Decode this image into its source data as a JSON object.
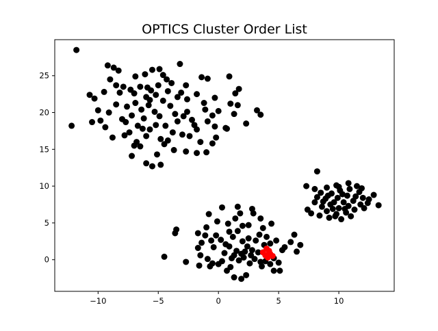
{
  "chart_data": {
    "type": "scatter",
    "title": "OPTICS Cluster Order List",
    "xlabel": "",
    "ylabel": "",
    "xlim": [
      -13.6,
      14.6
    ],
    "ylim": [
      -4.3,
      29.9
    ],
    "grid": false,
    "xticks": [
      -10,
      -5,
      0,
      5,
      10
    ],
    "yticks": [
      0,
      5,
      10,
      15,
      20,
      25
    ],
    "colors": {
      "points": "#000000",
      "highlight": "#ff0000"
    },
    "series": [
      {
        "color": "#000000",
        "points": [
          [
            -11.8,
            28.5
          ],
          [
            -12.2,
            18.2
          ],
          [
            -9.2,
            26.4
          ],
          [
            -10.7,
            22.4
          ],
          [
            -10.3,
            21.9
          ],
          [
            -9.5,
            22.8
          ],
          [
            -8.7,
            26.1
          ],
          [
            -8.3,
            25.7
          ],
          [
            -9.0,
            24.5
          ],
          [
            -8.5,
            23.7
          ],
          [
            -7.9,
            23.5
          ],
          [
            -7.3,
            23.1
          ],
          [
            -6.9,
            24.9
          ],
          [
            -6.1,
            25.2
          ],
          [
            -5.5,
            25.8
          ],
          [
            -4.9,
            25.9
          ],
          [
            -4.6,
            25.1
          ],
          [
            -3.2,
            26.6
          ],
          [
            -4.3,
            24.5
          ],
          [
            -2.7,
            23.7
          ],
          [
            -1.4,
            24.8
          ],
          [
            -0.9,
            24.6
          ],
          [
            0.9,
            24.9
          ],
          [
            1.4,
            22.6
          ],
          [
            1.7,
            23.2
          ],
          [
            1.0,
            21.2
          ],
          [
            1.6,
            21.0
          ],
          [
            1.3,
            19.8
          ],
          [
            3.2,
            20.3
          ],
          [
            3.5,
            19.7
          ],
          [
            2.3,
            18.5
          ],
          [
            0.7,
            17.8
          ],
          [
            -0.3,
            22.0
          ],
          [
            -1.2,
            21.3
          ],
          [
            -1.8,
            22.5
          ],
          [
            -2.6,
            21.8
          ],
          [
            -3.4,
            22.1
          ],
          [
            -4.0,
            20.9
          ],
          [
            -4.6,
            21.6
          ],
          [
            -5.2,
            22.4
          ],
          [
            -5.6,
            23.0
          ],
          [
            -6.0,
            22.1
          ],
          [
            -5.8,
            21.0
          ],
          [
            -6.4,
            20.4
          ],
          [
            -6.9,
            21.3
          ],
          [
            -7.2,
            19.6
          ],
          [
            -7.6,
            20.8
          ],
          [
            -8.0,
            19.1
          ],
          [
            -8.5,
            21.1
          ],
          [
            -9.1,
            20.0
          ],
          [
            -9.8,
            18.9
          ],
          [
            -10.0,
            20.3
          ],
          [
            -10.5,
            18.7
          ],
          [
            -9.4,
            18.0
          ],
          [
            -8.8,
            16.6
          ],
          [
            -7.8,
            16.9
          ],
          [
            -7.4,
            17.3
          ],
          [
            -6.8,
            16.0
          ],
          [
            -6.5,
            15.4
          ],
          [
            -6.0,
            16.8
          ],
          [
            -5.7,
            17.7
          ],
          [
            -5.2,
            18.3
          ],
          [
            -4.8,
            16.4
          ],
          [
            -4.5,
            15.7
          ],
          [
            -4.2,
            16.2
          ],
          [
            -3.8,
            17.3
          ],
          [
            -3.4,
            18.8
          ],
          [
            -2.9,
            19.5
          ],
          [
            -2.6,
            20.1
          ],
          [
            -2.2,
            19.0
          ],
          [
            -1.8,
            17.7
          ],
          [
            -1.5,
            16.0
          ],
          [
            -0.9,
            18.8
          ],
          [
            -0.5,
            19.6
          ],
          [
            0.0,
            20.2
          ],
          [
            -0.2,
            16.6
          ],
          [
            -0.5,
            15.8
          ],
          [
            -1.0,
            14.6
          ],
          [
            -1.8,
            14.5
          ],
          [
            -2.7,
            14.7
          ],
          [
            -3.7,
            14.9
          ],
          [
            -5.1,
            14.3
          ],
          [
            -6.0,
            13.1
          ],
          [
            -5.5,
            12.7
          ],
          [
            -4.8,
            12.9
          ],
          [
            -7.2,
            14.1
          ],
          [
            -7.7,
            18.7
          ],
          [
            -8.2,
            22.7
          ],
          [
            -7.0,
            22.6
          ],
          [
            -6.5,
            23.5
          ],
          [
            -5.9,
            23.4
          ],
          [
            -4.2,
            22.9
          ],
          [
            -3.6,
            19.8
          ],
          [
            -4.9,
            19.5
          ],
          [
            -5.3,
            20.1
          ],
          [
            -6.2,
            19.2
          ],
          [
            -6.7,
            18.2
          ],
          [
            -2.0,
            18.3
          ],
          [
            -1.1,
            20.4
          ],
          [
            -0.3,
            18.1
          ],
          [
            0.6,
            17.9
          ],
          [
            -3.1,
            22.7
          ],
          [
            -5.7,
            21.7
          ],
          [
            -4.4,
            18.2
          ],
          [
            -3.0,
            17.0
          ],
          [
            -2.4,
            16.8
          ],
          [
            -6.3,
            17.8
          ],
          [
            -7.0,
            15.5
          ],
          [
            -5.0,
            23.7
          ],
          [
            -3.9,
            24.0
          ],
          [
            -4.5,
            0.4
          ],
          [
            -2.7,
            -0.3
          ],
          [
            -3.6,
            3.6
          ],
          [
            -3.5,
            4.1
          ],
          [
            -1.7,
            3.6
          ],
          [
            -1.0,
            4.4
          ],
          [
            -0.8,
            6.2
          ],
          [
            0.3,
            7.1
          ],
          [
            1.6,
            7.2
          ],
          [
            1.8,
            6.3
          ],
          [
            2.8,
            6.9
          ],
          [
            2.9,
            6.3
          ],
          [
            3.5,
            5.6
          ],
          [
            4.4,
            4.9
          ],
          [
            3.7,
            4.3
          ],
          [
            2.5,
            4.7
          ],
          [
            1.4,
            5.6
          ],
          [
            0.8,
            4.9
          ],
          [
            -0.1,
            5.2
          ],
          [
            -1.4,
            2.3
          ],
          [
            -1.7,
            1.6
          ],
          [
            -1.5,
            0.6
          ],
          [
            -1.6,
            -0.8
          ],
          [
            -0.9,
            0.1
          ],
          [
            -0.5,
            -0.5
          ],
          [
            0.0,
            -0.6
          ],
          [
            0.5,
            0.9
          ],
          [
            0.9,
            1.8
          ],
          [
            1.2,
            3.1
          ],
          [
            1.6,
            3.9
          ],
          [
            2.0,
            2.5
          ],
          [
            2.4,
            1.8
          ],
          [
            2.8,
            1.3
          ],
          [
            3.1,
            2.6
          ],
          [
            3.4,
            3.4
          ],
          [
            1.3,
            0.6
          ],
          [
            1.7,
            -0.1
          ],
          [
            2.1,
            0.3
          ],
          [
            2.6,
            -0.5
          ],
          [
            3.0,
            0.1
          ],
          [
            3.5,
            -0.3
          ],
          [
            1.0,
            -1.0
          ],
          [
            0.7,
            -1.5
          ],
          [
            1.3,
            -2.4
          ],
          [
            1.9,
            -2.6
          ],
          [
            2.3,
            -2.1
          ],
          [
            3.9,
            -0.2
          ],
          [
            4.3,
            -0.6
          ],
          [
            4.6,
            -1.5
          ],
          [
            5.1,
            -1.5
          ],
          [
            5.0,
            -0.4
          ],
          [
            5.3,
            1.3
          ],
          [
            4.8,
            2.6
          ],
          [
            5.5,
            1.7
          ],
          [
            6.3,
            3.4
          ],
          [
            6.0,
            2.4
          ],
          [
            6.5,
            1.1
          ],
          [
            6.8,
            2.0
          ],
          [
            4.3,
            2.2
          ],
          [
            4.0,
            3.1
          ],
          [
            0.2,
            2.7
          ],
          [
            -0.4,
            1.7
          ],
          [
            -0.2,
            3.3
          ],
          [
            0.6,
            2.1
          ],
          [
            1.5,
            1.2
          ],
          [
            2.2,
            1.1
          ],
          [
            2.5,
            2.9
          ],
          [
            3.3,
            1.0
          ],
          [
            -1.1,
            3.3
          ],
          [
            -0.7,
            -0.9
          ],
          [
            0.3,
            -0.2
          ],
          [
            1.9,
            0.8
          ],
          [
            2.7,
            0.6
          ],
          [
            3.8,
            2.0
          ],
          [
            2.0,
            4.6
          ],
          [
            0.9,
            3.8
          ],
          [
            -0.6,
            2.6
          ],
          [
            1.1,
            0.2
          ],
          [
            4.6,
            0.2
          ],
          [
            3.6,
            -0.9
          ],
          [
            8.2,
            12.0
          ],
          [
            7.3,
            10.0
          ],
          [
            8.0,
            9.6
          ],
          [
            7.4,
            6.8
          ],
          [
            7.7,
            6.3
          ],
          [
            8.4,
            6.0
          ],
          [
            9.2,
            5.7
          ],
          [
            10.2,
            5.5
          ],
          [
            11.0,
            5.9
          ],
          [
            12.1,
            7.0
          ],
          [
            12.4,
            7.7
          ],
          [
            13.3,
            7.4
          ],
          [
            12.9,
            8.8
          ],
          [
            11.5,
            10.0
          ],
          [
            10.8,
            10.4
          ],
          [
            9.8,
            10.1
          ],
          [
            9.0,
            9.8
          ],
          [
            8.5,
            9.1
          ],
          [
            8.2,
            8.5
          ],
          [
            8.0,
            7.8
          ],
          [
            8.6,
            7.2
          ],
          [
            9.0,
            6.6
          ],
          [
            9.8,
            6.2
          ],
          [
            10.6,
            6.4
          ],
          [
            11.3,
            6.8
          ],
          [
            11.8,
            7.5
          ],
          [
            12.0,
            8.4
          ],
          [
            11.7,
            9.2
          ],
          [
            10.9,
            9.6
          ],
          [
            10.1,
            9.4
          ],
          [
            9.4,
            9.0
          ],
          [
            8.9,
            8.3
          ],
          [
            9.3,
            7.5
          ],
          [
            10.0,
            7.0
          ],
          [
            10.8,
            7.3
          ],
          [
            11.2,
            8.0
          ],
          [
            10.7,
            8.7
          ],
          [
            9.9,
            8.4
          ],
          [
            9.6,
            7.8
          ],
          [
            10.4,
            7.8
          ],
          [
            10.3,
            8.9
          ],
          [
            9.1,
            8.7
          ],
          [
            11.4,
            8.6
          ],
          [
            10.5,
            6.9
          ],
          [
            9.5,
            6.9
          ],
          [
            8.7,
            7.9
          ],
          [
            11.9,
            9.7
          ],
          [
            12.5,
            8.2
          ],
          [
            10.0,
            9.9
          ],
          [
            9.7,
            5.9
          ]
        ]
      },
      {
        "color": "#ff0000",
        "points": [
          [
            3.7,
            1.0
          ],
          [
            4.0,
            1.5
          ],
          [
            4.3,
            0.8
          ],
          [
            4.1,
            0.3
          ],
          [
            4.5,
            0.5
          ],
          [
            3.9,
            0.6
          ],
          [
            4.2,
            1.2
          ]
        ]
      }
    ]
  }
}
